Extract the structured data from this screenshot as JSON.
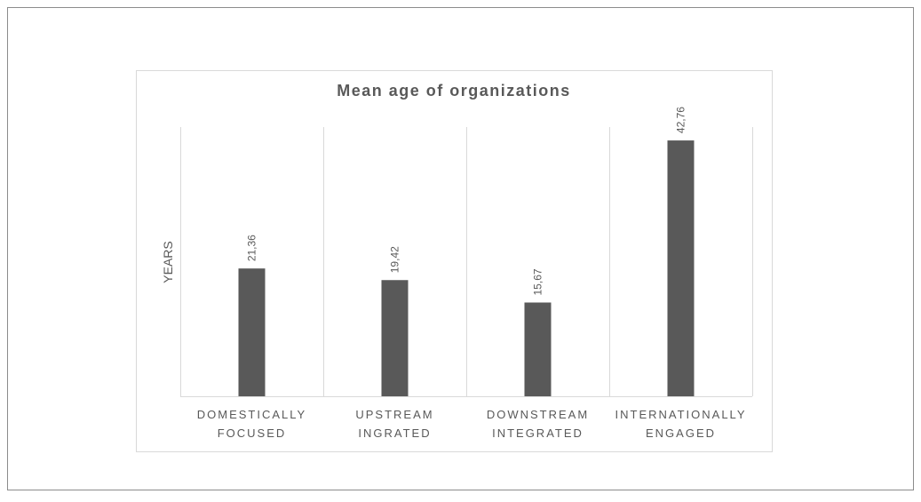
{
  "chart_data": {
    "type": "bar",
    "title": "Mean age of organizations",
    "y_label": "YEARS",
    "categories": [
      [
        "DOMESTICALLY",
        "FOCUSED"
      ],
      [
        "UPSTREAM",
        "INGRATED"
      ],
      [
        "DOWNSTREAM",
        "INTEGRATED"
      ],
      [
        "INTERNATIONALLY",
        "ENGAGED"
      ]
    ],
    "values": [
      21.36,
      19.42,
      15.67,
      42.76
    ],
    "value_labels": [
      "21,36",
      "19,42",
      "15,67",
      "42,76"
    ],
    "color": "#595959",
    "ylim": [
      0,
      45
    ]
  }
}
